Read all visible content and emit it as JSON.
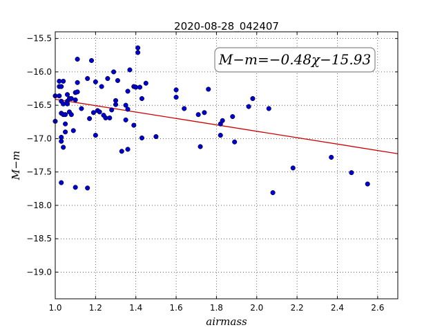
{
  "chart_data": {
    "type": "scatter",
    "title": "2020-08-28_042407",
    "xlabel": "airmass",
    "ylabel": "M−m",
    "annotation": "M−m=−0.48χ−15.93",
    "xlim": [
      1.0,
      2.7
    ],
    "ylim": [
      -19.4,
      -15.4
    ],
    "y_inverted": true,
    "grid": true,
    "x_ticks": [
      1.0,
      1.2,
      1.4,
      1.6,
      1.8,
      2.0,
      2.2,
      2.4,
      2.6
    ],
    "x_tick_labels": [
      "1.0",
      "1.2",
      "1.4",
      "1.6",
      "1.8",
      "2.0",
      "2.2",
      "2.4",
      "2.6"
    ],
    "y_ticks": [
      -15.5,
      -16.0,
      -16.5,
      -17.0,
      -17.5,
      -18.0,
      -18.5,
      -19.0
    ],
    "y_tick_labels": [
      "−15.5",
      "−16.0",
      "−16.5",
      "−17.0",
      "−17.5",
      "−18.0",
      "−18.5",
      "−19.0"
    ],
    "fit": {
      "slope": -0.48,
      "intercept": -15.93,
      "color": "#cc0000"
    },
    "point_color": "#0000cc",
    "points": [
      [
        1.0,
        -16.36
      ],
      [
        1.0,
        -16.74
      ],
      [
        1.02,
        -16.14
      ],
      [
        1.02,
        -16.36
      ],
      [
        1.02,
        -16.22
      ],
      [
        1.03,
        -16.22
      ],
      [
        1.03,
        -16.62
      ],
      [
        1.03,
        -16.44
      ],
      [
        1.03,
        -16.98
      ],
      [
        1.03,
        -17.04
      ],
      [
        1.03,
        -17.66
      ],
      [
        1.04,
        -16.14
      ],
      [
        1.04,
        -16.48
      ],
      [
        1.04,
        -16.64
      ],
      [
        1.04,
        -17.13
      ],
      [
        1.05,
        -16.64
      ],
      [
        1.05,
        -16.78
      ],
      [
        1.05,
        -16.9
      ],
      [
        1.06,
        -16.34
      ],
      [
        1.06,
        -16.44
      ],
      [
        1.06,
        -16.48
      ],
      [
        1.07,
        -16.4
      ],
      [
        1.07,
        -16.6
      ],
      [
        1.08,
        -16.4
      ],
      [
        1.08,
        -16.64
      ],
      [
        1.09,
        -16.88
      ],
      [
        1.1,
        -16.31
      ],
      [
        1.1,
        -16.42
      ],
      [
        1.1,
        -17.73
      ],
      [
        1.11,
        -16.16
      ],
      [
        1.11,
        -16.3
      ],
      [
        1.11,
        -15.81
      ],
      [
        1.13,
        -16.55
      ],
      [
        1.16,
        -16.1
      ],
      [
        1.16,
        -17.74
      ],
      [
        1.17,
        -16.7
      ],
      [
        1.18,
        -15.83
      ],
      [
        1.19,
        -16.61
      ],
      [
        1.2,
        -16.95
      ],
      [
        1.2,
        -16.15
      ],
      [
        1.21,
        -16.58
      ],
      [
        1.22,
        -16.6
      ],
      [
        1.23,
        -16.22
      ],
      [
        1.24,
        -16.65
      ],
      [
        1.25,
        -16.69
      ],
      [
        1.26,
        -16.1
      ],
      [
        1.27,
        -16.69
      ],
      [
        1.28,
        -16.57
      ],
      [
        1.29,
        -16.0
      ],
      [
        1.3,
        -16.49
      ],
      [
        1.3,
        -16.43
      ],
      [
        1.31,
        -16.13
      ],
      [
        1.33,
        -17.19
      ],
      [
        1.35,
        -16.72
      ],
      [
        1.35,
        -16.5
      ],
      [
        1.36,
        -16.29
      ],
      [
        1.36,
        -17.16
      ],
      [
        1.36,
        -16.56
      ],
      [
        1.37,
        -15.97
      ],
      [
        1.39,
        -16.22
      ],
      [
        1.39,
        -16.8
      ],
      [
        1.4,
        -16.23
      ],
      [
        1.41,
        -15.64
      ],
      [
        1.41,
        -15.71
      ],
      [
        1.42,
        -16.23
      ],
      [
        1.43,
        -16.4
      ],
      [
        1.43,
        -16.99
      ],
      [
        1.45,
        -16.17
      ],
      [
        1.5,
        -16.97
      ],
      [
        1.6,
        -16.38
      ],
      [
        1.6,
        -16.27
      ],
      [
        1.64,
        -16.55
      ],
      [
        1.71,
        -16.64
      ],
      [
        1.72,
        -17.12
      ],
      [
        1.74,
        -16.61
      ],
      [
        1.76,
        -16.26
      ],
      [
        1.82,
        -16.78
      ],
      [
        1.82,
        -16.95
      ],
      [
        1.83,
        -16.73
      ],
      [
        1.88,
        -16.67
      ],
      [
        1.89,
        -17.05
      ],
      [
        1.96,
        -16.52
      ],
      [
        1.98,
        -16.4
      ],
      [
        2.06,
        -16.55
      ],
      [
        2.08,
        -17.81
      ],
      [
        2.18,
        -17.44
      ],
      [
        2.37,
        -17.28
      ],
      [
        2.47,
        -17.51
      ],
      [
        2.55,
        -17.68
      ]
    ]
  }
}
